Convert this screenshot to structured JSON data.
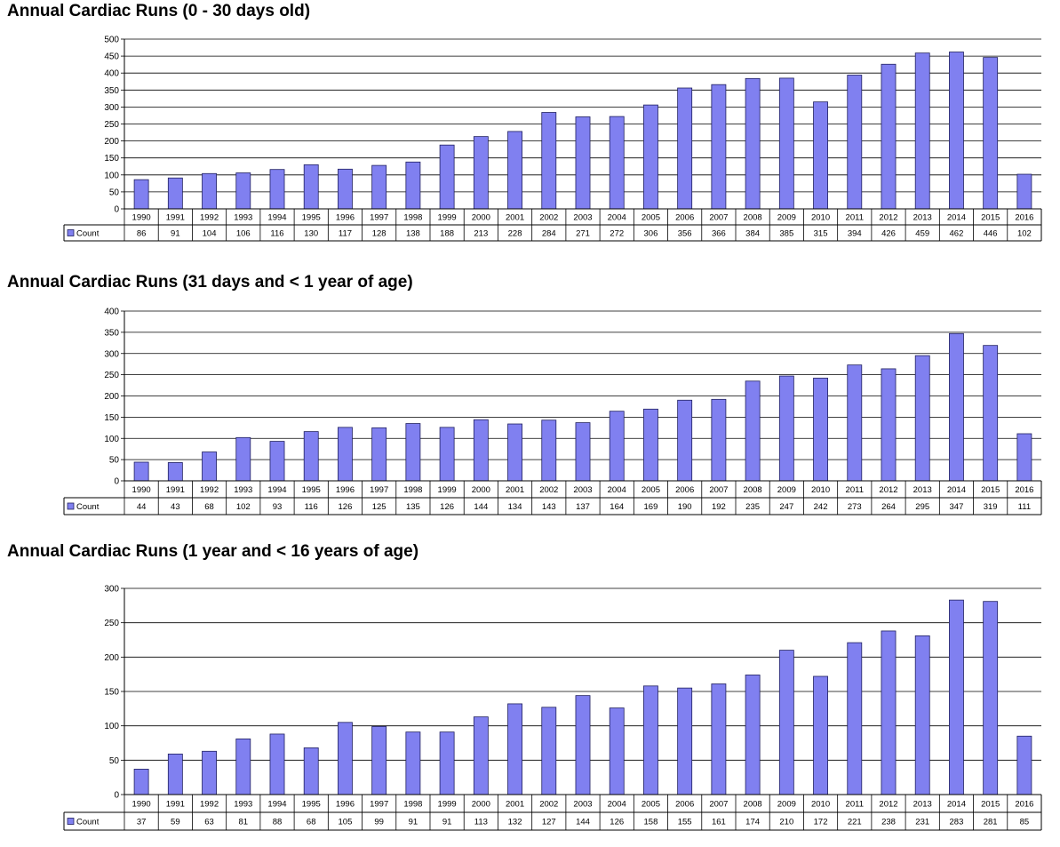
{
  "chart_data": [
    {
      "type": "bar",
      "title": "Annual Cardiac Runs (0 - 30 days old)",
      "categories": [
        "1990",
        "1991",
        "1992",
        "1993",
        "1994",
        "1995",
        "1996",
        "1997",
        "1998",
        "1999",
        "2000",
        "2001",
        "2002",
        "2003",
        "2004",
        "2005",
        "2006",
        "2007",
        "2008",
        "2009",
        "2010",
        "2011",
        "2012",
        "2013",
        "2014",
        "2015",
        "2016"
      ],
      "series": [
        {
          "name": "Count",
          "values": [
            86,
            91,
            104,
            106,
            116,
            130,
            117,
            128,
            138,
            188,
            213,
            228,
            284,
            271,
            272,
            306,
            356,
            366,
            384,
            385,
            315,
            394,
            426,
            459,
            462,
            446,
            102
          ]
        }
      ],
      "ylim": [
        0,
        500
      ],
      "yticks": [
        "0",
        "50",
        "100",
        "150",
        "200",
        "250",
        "300",
        "350",
        "400",
        "450",
        "500"
      ],
      "legend": "data-table-left",
      "grid": true,
      "bar_color": "#8080f0"
    },
    {
      "type": "bar",
      "title": "Annual Cardiac Runs (31 days and < 1 year of age)",
      "categories": [
        "1990",
        "1991",
        "1992",
        "1993",
        "1994",
        "1995",
        "1996",
        "1997",
        "1998",
        "1999",
        "2000",
        "2001",
        "2002",
        "2003",
        "2004",
        "2005",
        "2006",
        "2007",
        "2008",
        "2009",
        "2010",
        "2011",
        "2012",
        "2013",
        "2014",
        "2015",
        "2016"
      ],
      "series": [
        {
          "name": "Count",
          "values": [
            44,
            43,
            68,
            102,
            93,
            116,
            126,
            125,
            135,
            126,
            144,
            134,
            143,
            137,
            164,
            169,
            190,
            192,
            235,
            247,
            242,
            273,
            264,
            295,
            347,
            319,
            111
          ]
        }
      ],
      "ylim": [
        0,
        400
      ],
      "yticks": [
        "0",
        "50",
        "100",
        "150",
        "200",
        "250",
        "300",
        "350",
        "400"
      ],
      "legend": "data-table-left",
      "grid": true,
      "bar_color": "#8080f0"
    },
    {
      "type": "bar",
      "title": "Annual Cardiac Runs (1 year and < 16 years of age)",
      "categories": [
        "1990",
        "1991",
        "1992",
        "1993",
        "1994",
        "1995",
        "1996",
        "1997",
        "1998",
        "1999",
        "2000",
        "2001",
        "2002",
        "2003",
        "2004",
        "2005",
        "2006",
        "2007",
        "2008",
        "2009",
        "2010",
        "2011",
        "2012",
        "2013",
        "2014",
        "2015",
        "2016"
      ],
      "series": [
        {
          "name": "Count",
          "values": [
            37,
            59,
            63,
            81,
            88,
            68,
            105,
            99,
            91,
            91,
            113,
            132,
            127,
            144,
            126,
            158,
            155,
            161,
            174,
            210,
            172,
            221,
            238,
            231,
            283,
            281,
            85
          ]
        }
      ],
      "ylim": [
        0,
        300
      ],
      "yticks": [
        "0",
        "50",
        "100",
        "150",
        "200",
        "250",
        "300"
      ],
      "legend": "data-table-left",
      "grid": true,
      "bar_color": "#8080f0"
    }
  ]
}
